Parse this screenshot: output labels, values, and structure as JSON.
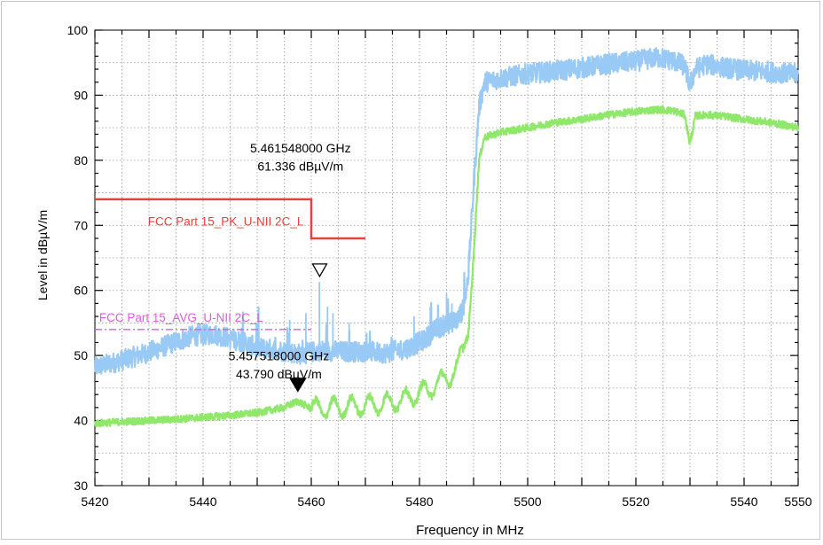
{
  "chart_data": {
    "type": "line",
    "title": "",
    "xlabel": "Frequency in MHz",
    "ylabel": "Level in dBµV/m",
    "xlim": [
      5420,
      5550
    ],
    "ylim": [
      30,
      100
    ],
    "x_ticks": [
      5420,
      5440,
      5460,
      5480,
      5500,
      5520,
      5540,
      5550
    ],
    "y_ticks": [
      30,
      40,
      50,
      60,
      70,
      80,
      90,
      100
    ],
    "grid": true,
    "colors": {
      "peak": "#99c9f5",
      "average": "#8fe86a",
      "limit_pk": "#e8403c",
      "limit_avg": "#e05ae0",
      "marker": "#000000"
    },
    "series": [
      {
        "key": "peak",
        "x": [
          5420,
          5423,
          5426,
          5430,
          5434,
          5438,
          5442,
          5446,
          5450,
          5454,
          5458,
          5462,
          5466,
          5470,
          5474,
          5478,
          5481,
          5483,
          5485,
          5487,
          5488,
          5489,
          5490,
          5491,
          5492,
          5495,
          5500,
          5505,
          5510,
          5515,
          5520,
          5524,
          5527,
          5529,
          5530,
          5531,
          5533,
          5536,
          5540,
          5545,
          5550
        ],
        "y": [
          48.2,
          48.8,
          49.5,
          50.5,
          51.8,
          53.0,
          53.3,
          52.4,
          51.2,
          50.8,
          50.2,
          50.8,
          50.6,
          50.6,
          50.4,
          51.2,
          52.5,
          54.0,
          54.8,
          55.5,
          57.0,
          62.0,
          76.0,
          88.0,
          92.0,
          92.6,
          93.3,
          93.7,
          94.2,
          94.8,
          95.2,
          95.8,
          95.3,
          94.5,
          91.5,
          94.0,
          94.8,
          94.3,
          93.8,
          93.6,
          93.2
        ],
        "noise": 1.6,
        "spikes": [
          [
            5456,
            55.5
          ],
          [
            5459,
            56.5
          ],
          [
            5461.5,
            61.3
          ],
          [
            5463,
            57.5
          ],
          [
            5464,
            56.5
          ],
          [
            5467,
            55.0
          ],
          [
            5479,
            56.0
          ],
          [
            5482,
            57.5
          ],
          [
            5485,
            59.5
          ],
          [
            5486,
            58.0
          ]
        ]
      },
      {
        "key": "average",
        "x": [
          5420,
          5425,
          5430,
          5435,
          5440,
          5445,
          5450,
          5455,
          5457.5,
          5460,
          5465,
          5470,
          5475,
          5478,
          5481,
          5483,
          5485,
          5487,
          5488,
          5489,
          5490,
          5491,
          5492,
          5495,
          5500,
          5505,
          5510,
          5515,
          5520,
          5524,
          5527,
          5529,
          5530,
          5531,
          5533,
          5536,
          5540,
          5545,
          5550
        ],
        "y": [
          39.6,
          39.8,
          40.0,
          40.2,
          40.5,
          40.8,
          41.2,
          42.0,
          43.0,
          41.8,
          42.0,
          42.3,
          42.8,
          43.5,
          44.5,
          45.5,
          46.5,
          48.0,
          51.0,
          53.0,
          65.0,
          80.0,
          83.5,
          84.3,
          85.0,
          85.8,
          86.3,
          87.0,
          87.5,
          87.8,
          87.6,
          87.0,
          82.5,
          86.8,
          87.0,
          86.8,
          86.3,
          85.8,
          85.0
        ],
        "noise": 0.55,
        "ripple": [
          5460,
          5488,
          1.4
        ]
      }
    ],
    "limits": [
      {
        "key": "limit_pk",
        "label": "FCC Part 15_PK_U-NII 2C_L",
        "points": [
          [
            5420,
            74
          ],
          [
            5460,
            74
          ],
          [
            5460,
            68
          ],
          [
            5470,
            68
          ]
        ]
      },
      {
        "key": "limit_avg",
        "label": "FCC Part 15_AVG_U-NII 2C_L",
        "points": [
          [
            5420,
            54
          ],
          [
            5460,
            54
          ]
        ]
      }
    ],
    "markers": [
      {
        "x": 5461.548,
        "y": 61.336,
        "style": "open",
        "freq_label": "5.461548000 GHz",
        "level_label": "61.336 dBµV/m"
      },
      {
        "x": 5457.518,
        "y": 43.79,
        "style": "filled",
        "freq_label": "5.457518000 GHz",
        "level_label": "43.790 dBµV/m"
      }
    ]
  }
}
